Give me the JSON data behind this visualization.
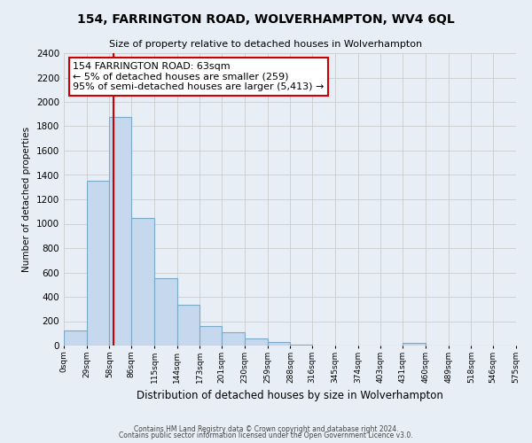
{
  "title": "154, FARRINGTON ROAD, WOLVERHAMPTON, WV4 6QL",
  "subtitle": "Size of property relative to detached houses in Wolverhampton",
  "xlabel": "Distribution of detached houses by size in Wolverhampton",
  "ylabel": "Number of detached properties",
  "bar_values": [
    125,
    1350,
    1880,
    1050,
    550,
    335,
    160,
    110,
    60,
    30,
    5,
    0,
    0,
    0,
    0,
    25,
    0,
    0,
    0,
    0
  ],
  "bin_edges": [
    0,
    29,
    58,
    86,
    115,
    144,
    173,
    201,
    230,
    259,
    288,
    316,
    345,
    374,
    403,
    431,
    460,
    489,
    518,
    546,
    575
  ],
  "tick_labels": [
    "0sqm",
    "29sqm",
    "58sqm",
    "86sqm",
    "115sqm",
    "144sqm",
    "173sqm",
    "201sqm",
    "230sqm",
    "259sqm",
    "288sqm",
    "316sqm",
    "345sqm",
    "374sqm",
    "403sqm",
    "431sqm",
    "460sqm",
    "489sqm",
    "518sqm",
    "546sqm",
    "575sqm"
  ],
  "bar_color": "#c5d8ed",
  "bar_edge_color": "#7aaac8",
  "grid_color": "#cccccc",
  "bg_color": "#e8eef5",
  "plot_bg_color": "#e8eef5",
  "vline_x": 63,
  "vline_color": "#cc0000",
  "annotation_text": "154 FARRINGTON ROAD: 63sqm\n← 5% of detached houses are smaller (259)\n95% of semi-detached houses are larger (5,413) →",
  "annotation_box_color": "#ffffff",
  "annotation_box_edge": "#cc0000",
  "ylim": [
    0,
    2400
  ],
  "yticks": [
    0,
    200,
    400,
    600,
    800,
    1000,
    1200,
    1400,
    1600,
    1800,
    2000,
    2200,
    2400
  ],
  "footer1": "Contains HM Land Registry data © Crown copyright and database right 2024.",
  "footer2": "Contains public sector information licensed under the Open Government Licence v3.0."
}
